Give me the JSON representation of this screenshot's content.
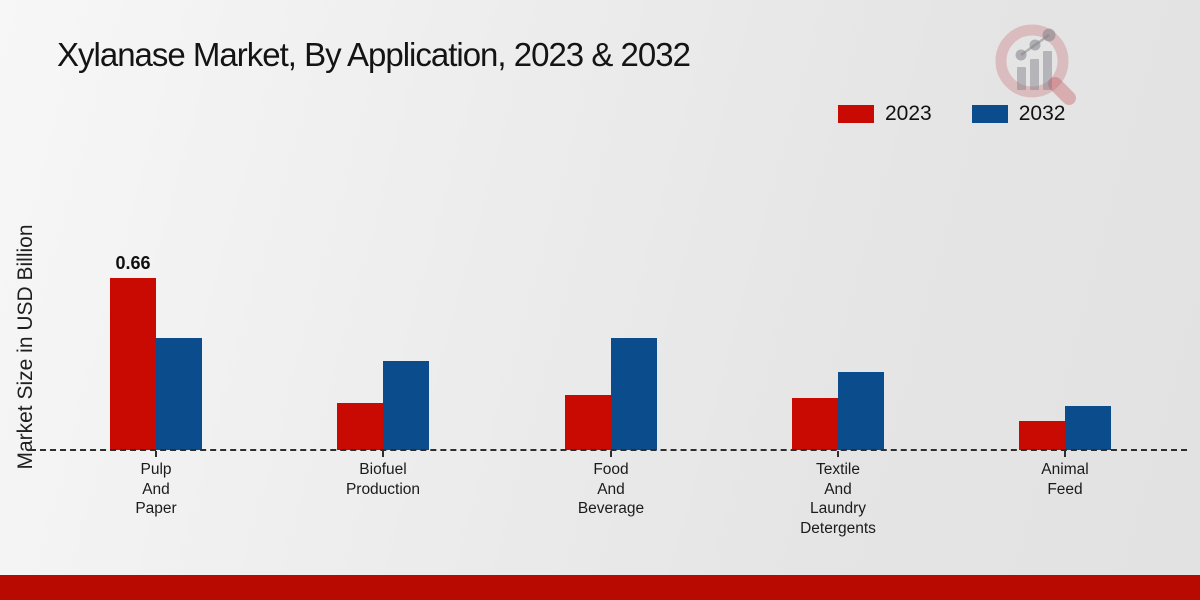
{
  "title": "Xylanase Market, By Application, 2023 & 2032",
  "y_axis_label": "Market Size in USD Billion",
  "legend": [
    {
      "label": "2023",
      "color": "#c90a03"
    },
    {
      "label": "2032",
      "color": "#0b4c8c"
    }
  ],
  "icons": {
    "watermark": "magnifier-growth-chart-logo"
  },
  "colors": {
    "series_2023": "#c90a03",
    "series_2032": "#0b4c8c",
    "footer_bar": "#b80a01",
    "baseline": "#2e2e2e"
  },
  "chart_data": {
    "type": "bar",
    "title": "Xylanase Market, By Application, 2023 & 2032",
    "xlabel": "",
    "ylabel": "Market Size in USD Billion",
    "categories": [
      "Pulp And Paper",
      "Biofuel Production",
      "Food And Beverage",
      "Textile And Laundry Detergents",
      "Animal Feed"
    ],
    "category_lines": [
      [
        "Pulp",
        "And",
        "Paper"
      ],
      [
        "Biofuel",
        "Production"
      ],
      [
        "Food",
        "And",
        "Beverage"
      ],
      [
        "Textile",
        "And",
        "Laundry",
        "Detergents"
      ],
      [
        "Animal",
        "Feed"
      ]
    ],
    "series": [
      {
        "name": "2023",
        "color": "#c90a03",
        "values": [
          0.66,
          0.18,
          0.21,
          0.2,
          0.11
        ],
        "labels": [
          "0.66",
          "",
          "",
          "",
          ""
        ]
      },
      {
        "name": "2032",
        "color": "#0b4c8c",
        "values": [
          0.43,
          0.34,
          0.43,
          0.3,
          0.17
        ],
        "labels": [
          "",
          "",
          "",
          "",
          ""
        ]
      }
    ],
    "ylim": [
      0,
      0.8
    ],
    "grid": false,
    "legend_position": "top-right",
    "baseline_style": "dashed",
    "units": "USD Billion"
  }
}
